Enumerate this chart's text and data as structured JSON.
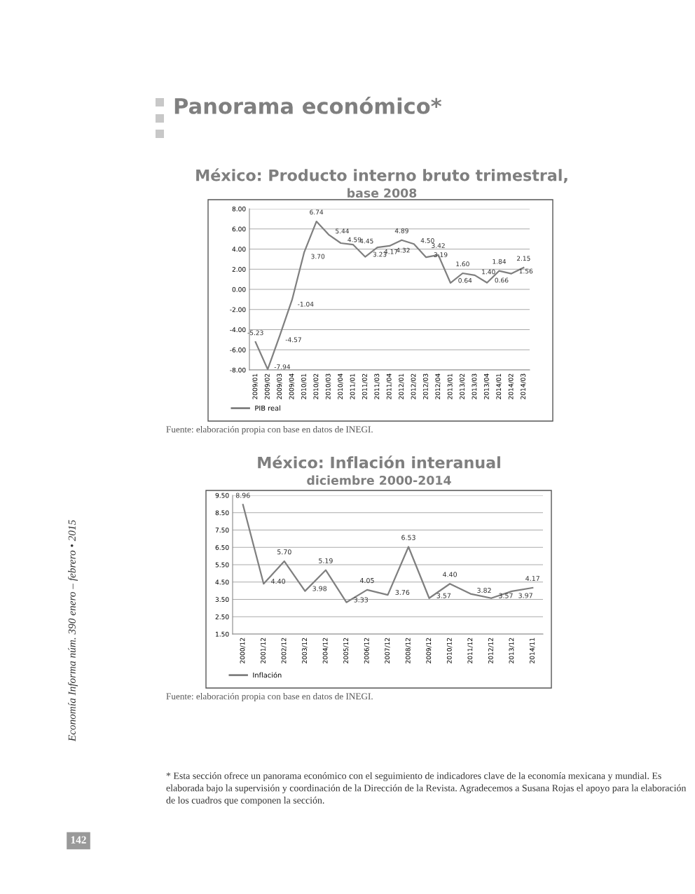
{
  "chart_data": [
    {
      "type": "line",
      "title": "México: Producto interno bruto trimestral,",
      "subtitle": "base 2008",
      "categories": [
        "2009/01",
        "2009/02",
        "2009/03",
        "2009/04",
        "2010/01",
        "2010/02",
        "2010/03",
        "2010/04",
        "2011/01",
        "2011/02",
        "2011/03",
        "2011/04",
        "2012/01",
        "2012/02",
        "2012/03",
        "2012/04",
        "2013/01",
        "2013/02",
        "2013/03",
        "2013/04",
        "2014/01",
        "2014/02",
        "2014/03"
      ],
      "series": [
        {
          "name": "PIB real",
          "color": "#7f7f7f",
          "values": [
            -5.23,
            -7.94,
            -4.57,
            -1.04,
            3.7,
            6.74,
            5.44,
            4.59,
            4.45,
            3.23,
            4.17,
            4.32,
            4.89,
            4.5,
            3.19,
            3.42,
            0.64,
            1.6,
            1.4,
            0.66,
            1.84,
            1.56,
            2.15
          ],
          "value_labels": [
            "-5.23",
            "-7.94",
            "-4.57",
            "-1.04",
            "3.70",
            "6.74",
            "5.44",
            "4.59",
            "4.45",
            "3.23",
            "4.17",
            "4.32",
            "4.89",
            "4.50",
            "3.19",
            "3.42",
            "0.64",
            "1.60",
            "1.40",
            "0.66",
            "1.84",
            "1.56",
            "2.15"
          ]
        }
      ],
      "ylim": [
        -8,
        8
      ],
      "yticks": [
        {
          "value": -8,
          "label": "-8.00"
        },
        {
          "value": -6,
          "label": "-6.00"
        },
        {
          "value": -4,
          "label": "-4.00"
        },
        {
          "value": -2,
          "label": "-2.00"
        },
        {
          "value": 0,
          "label": "0.00"
        },
        {
          "value": 2,
          "label": "2.00"
        },
        {
          "value": 4,
          "label": "4.00"
        },
        {
          "value": 6,
          "label": "6.00"
        },
        {
          "value": 8,
          "label": "8.00"
        }
      ],
      "grid": "y",
      "legend": "bottom left",
      "marker": "none",
      "line_style": "solid",
      "annotations": [
        "Panorama económico*",
        "Fuente: elaboración propia con base en datos de INEGI."
      ]
    },
    {
      "type": "line",
      "title": "México: Inflación interanual",
      "subtitle": "diciembre 2000-2014",
      "categories": [
        "2000/12",
        "2001/12",
        "2002/12",
        "2003/12",
        "2004/12",
        "2005/12",
        "2006/12",
        "2007/12",
        "2008/12",
        "2009/12",
        "2010/12",
        "2011/12",
        "2012/12",
        "2013/12",
        "2014/11"
      ],
      "series": [
        {
          "name": "Inflación",
          "color": "#7f7f7f",
          "values": [
            8.96,
            4.4,
            5.7,
            3.98,
            5.19,
            3.33,
            4.05,
            3.76,
            6.53,
            3.57,
            4.4,
            3.82,
            3.57,
            3.97,
            4.17
          ],
          "value_labels": [
            "8.96",
            "4.40",
            "5.70",
            "3.98",
            "5.19",
            "3.33",
            "4.05",
            "3.76",
            "6.53",
            "3.57",
            "4.40",
            "3.82",
            "3.57",
            "3.97",
            "4.17"
          ]
        }
      ],
      "ylim": [
        1.5,
        9.5
      ],
      "yticks": [
        {
          "value": 1.5,
          "label": "1.50"
        },
        {
          "value": 2.5,
          "label": "2.50"
        },
        {
          "value": 3.5,
          "label": "3.50"
        },
        {
          "value": 4.5,
          "label": "4.50"
        },
        {
          "value": 5.5,
          "label": "5.50"
        },
        {
          "value": 6.5,
          "label": "6.50"
        },
        {
          "value": 7.5,
          "label": "7.50"
        },
        {
          "value": 8.5,
          "label": "8.50"
        },
        {
          "value": 9.5,
          "label": "9.50"
        }
      ],
      "grid": "y",
      "legend": "bottom left",
      "marker": "none",
      "line_style": "solid",
      "annotations": [
        "Fuente: elaboración propia con base en datos de INEGI.",
        "Economía Informa núm. 390 enero – febrero • 2015",
        "* Esta sección ofrece un panorama económico con el seguimiento de indicadores clave de la economía mexicana y mundial. Es elaborada bajo la supervisión y coordinación de la Dirección de la Revista. Agradecemos a Susana Rojas el apoyo para la elaboración de los cuadros que componen la sección.",
        "142"
      ]
    }
  ]
}
